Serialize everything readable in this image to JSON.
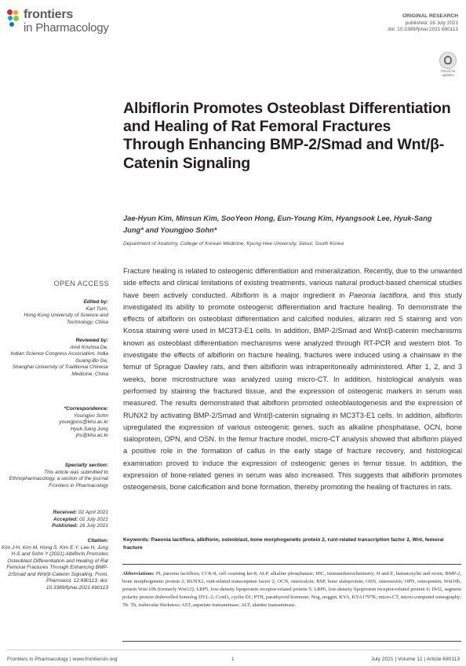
{
  "header": {
    "logo_line1": "frontiers",
    "logo_line2": "in Pharmacology",
    "article_type": "ORIGINAL RESEARCH",
    "published": "published: 16 July 2021",
    "doi": "doi: 10.3389/fphar.2021.690113",
    "check_updates": "Check for updates"
  },
  "title": "Albiflorin Promotes Osteoblast Differentiation and Healing of Rat Femoral Fractures Through Enhancing BMP-2/Smad and Wnt/β-Catenin Signaling",
  "authors": "Jae-Hyun Kim, Minsun Kim, SooYeon Hong, Eun-Young Kim, Hyangsook Lee, Hyuk-Sang Jung* and Youngjoo Sohn*",
  "affiliation": "Department of Anatomy, College of Korean Medicine, Kyung Hee University, Seoul, South Korea",
  "sidebar": {
    "open_access": "OPEN ACCESS",
    "edited_by_label": "Edited by:",
    "editor_name": "Karl Tsim,",
    "editor_affil": "Hong Kong University of Science and Technology, China",
    "reviewed_by_label": "Reviewed by:",
    "reviewer1_name": "Amit Krishna De,",
    "reviewer1_affil": "Indian Science Congress Association, India",
    "reviewer2_name": "Guang-Bo Ge,",
    "reviewer2_affil": "Shanghai University of Traditional Chinese Medicine, China",
    "correspondence_label": "*Correspondence:",
    "corr1_name": "Youngjoo Sohn",
    "corr1_email": "youngjoos@khu.ac.kr",
    "corr2_name": "Hyuk-Sang Jung",
    "corr2_email": "jhs@khu.ac.kr",
    "specialty_label": "Specialty section:",
    "specialty_text": "This article was submitted to Ethnopharmacology, a section of the journal Frontiers in Pharmacology",
    "received_label": "Received:",
    "received_date": "02 April 2021",
    "accepted_label": "Accepted:",
    "accepted_date": "02 July 2021",
    "published_label": "Published:",
    "published_date": "16 July 2021",
    "citation_label": "Citation:",
    "citation_text": "Kim J-H, Kim M, Hong S, Kim E-Y, Lee H, Jung H-S and Sohn Y (2021) Albiflorin Promotes Osteoblast Differentiation and Healing of Rat Femoral Fractures Through Enhancing BMP-2/Smad and Wnt/β-Catenin Signaling. Front. Pharmacol. 12:690113. doi: 10.3389/fphar.2021.690113"
  },
  "abstract": {
    "part1": "Fracture healing is related to osteogenic differentiation and mineralization. Recently, due to the unwanted side effects and clinical limitations of existing treatments, various natural product-based chemical studies have been actively conducted. Albiflorin is a major ingredient in ",
    "species": "Paeonia lactiflora",
    "part2": ", and this study investigated its ability to promote osteogenic differentiation and fracture healing. To demonstrate the effects of albiflorin on osteoblast differentiation and calcified nodules, alizarin red S staining and von Kossa staining were used in MC3T3-E1 cells. In addition, BMP-2/Smad and Wnt/β-catenin mechanisms known as osteoblast differentiation mechanisms were analyzed through RT-PCR and western blot. To investigate the effects of albiflorin on fracture healing, fractures were induced using a chainsaw in the femur of Sprague Dawley rats, and then albiflorin was intraperitoneally administered. After 1, 2, and 3 weeks, bone microstructure was analyzed using micro-CT. In addition, histological analysis was performed by staining the fractured tissue, and the expression of osteogenic markers in serum was measured. The results demonstrated that albiflorin promoted osteoblastogenesis and the expression of RUNX2 by activating BMP-2/Smad and Wnt/β-catenin signaling in MC3T3-E1 cells. In addition, albiflorin upregulated the expression of various osteogenic genes, such as alkaline phosphatase, OCN, bone sialoprotein, OPN, and OSN. In the femur fracture model, micro-CT analysis showed that albiflorin played a positive role in the formation of callus in the early stage of fracture recovery, and histological examination proved to induce the expression of osteogenic genes in femur tissue. In addition, the expression of bone-related genes in serum was also increased. This suggests that albiflorin promotes osteogenesis, bone calcification and bone formation, thereby promoting the healing of fractures in rats."
  },
  "keywords": {
    "label": "Keywords:",
    "text": "Paeonia lactiflora, albiflorin, osteoblast, bone morphogenetic protein 2, runt-related transcription factor 2, Wnt, femoral fracture"
  },
  "abbreviations": {
    "label": "Abbreviations:",
    "text": "PI, paeonia lactiflora; CCK-8, cell counting kit-8; ALP, alkaline phosphatase; IHC, immunohistochemistry; H and E, hematoxylin and eosin; BMP-2, bone morphogenetic protein 2; RUNX2, runt-related transcription factor 2; OCN, osteocalcin; BSP, bone sialoprotein; OSN, osteonectin; OPN, osteopontin; Wnt10b, protein Wnt-10b (formerly Wnt12); LRP5, low-density lipoprotein receptor-related protein 5; LRP6, low-density lipoprotein receptor-related protein 6; Dvl2, segment polarity protein dishevelled homolog DVL-2; Ccnd1, cyclin D1; PTH, parathyroid hormone; Nog, noggin; KYA, KYA1797K; micro-CT, micro-computed tomography; Tb. Th, trabecular thickness; AST, aspartate transaminase; ALT, alanine transaminase."
  },
  "footer": {
    "left": "Frontiers in Pharmacology | www.frontiersin.org",
    "page": "1",
    "right": "July 2021 | Volume 12 | Article 690113"
  },
  "colors": {
    "logo_dots": [
      "#d7232f",
      "#f7a11a",
      "#00a5dd",
      "#8cc63e",
      "#1b6eb5"
    ]
  }
}
